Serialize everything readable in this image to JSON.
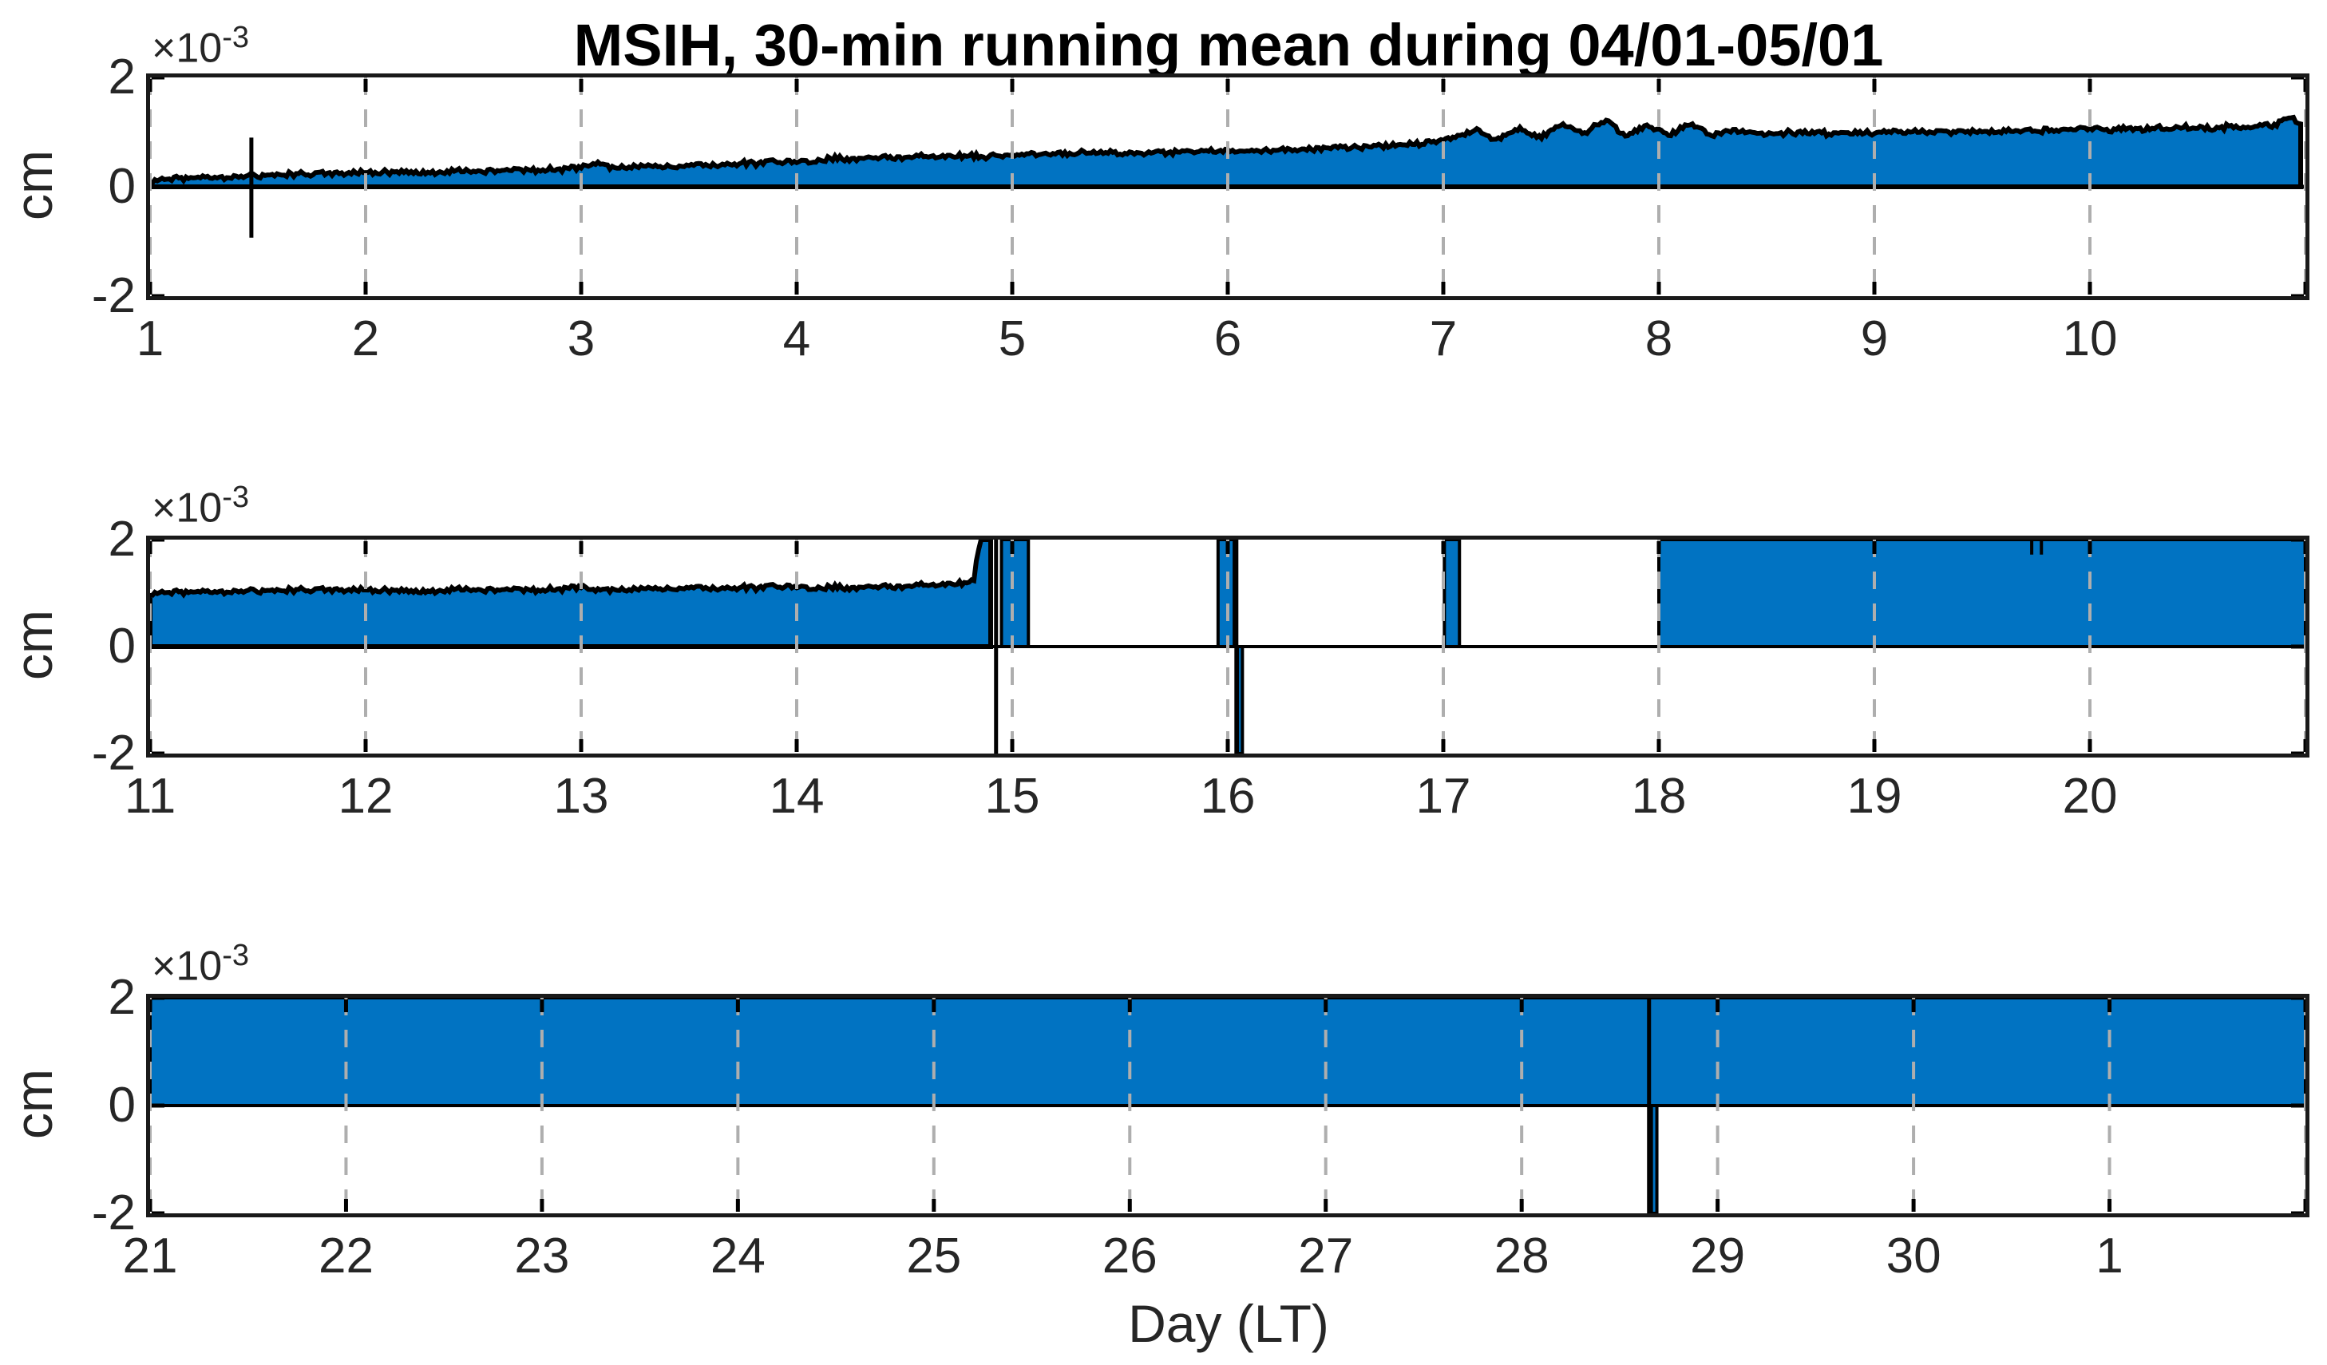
{
  "title": "MSIH, 30-min running mean during 04/01-05/01",
  "xlabel": "Day (LT)",
  "ylabel": "cm",
  "colors": {
    "fill": "#0173c2",
    "line": "#000000",
    "grid": "#aeaeae",
    "spine": "#1a1a1a",
    "text": "#262626"
  },
  "chart_data": [
    {
      "type": "area",
      "name": "subplot-days-1-to-11",
      "y_unit": "1e-3 cm",
      "exponent_base": "×10",
      "exponent_power": "-3",
      "ylabel": "cm",
      "xlim": [
        1,
        11
      ],
      "ylim": [
        -2,
        2
      ],
      "yticks": [
        {
          "v": 2,
          "label": "2"
        },
        {
          "v": 0,
          "label": "0"
        },
        {
          "v": -2,
          "label": "-2"
        }
      ],
      "xticks": [
        {
          "v": 1,
          "label": "1"
        },
        {
          "v": 2,
          "label": "2"
        },
        {
          "v": 3,
          "label": "3"
        },
        {
          "v": 4,
          "label": "4"
        },
        {
          "v": 5,
          "label": "5"
        },
        {
          "v": 6,
          "label": "6"
        },
        {
          "v": 7,
          "label": "7"
        },
        {
          "v": 8,
          "label": "8"
        },
        {
          "v": 9,
          "label": "9"
        },
        {
          "v": 10,
          "label": "10"
        }
      ],
      "grid_days": [
        1,
        2,
        3,
        4,
        5,
        6,
        7,
        8,
        9,
        10,
        11
      ],
      "noise_amp": 0.05,
      "envelope": [
        [
          1,
          0.12
        ],
        [
          1.1,
          0.15
        ],
        [
          1.22,
          0.17
        ],
        [
          1.35,
          0.18
        ],
        [
          1.47,
          0.2
        ],
        [
          1.6,
          0.22
        ],
        [
          1.75,
          0.23
        ],
        [
          1.9,
          0.25
        ],
        [
          2.05,
          0.26
        ],
        [
          2.2,
          0.27
        ],
        [
          2.4,
          0.28
        ],
        [
          2.6,
          0.3
        ],
        [
          2.8,
          0.31
        ],
        [
          3.0,
          0.33
        ],
        [
          3.07,
          0.46
        ],
        [
          3.15,
          0.35
        ],
        [
          3.3,
          0.37
        ],
        [
          3.5,
          0.39
        ],
        [
          3.7,
          0.41
        ],
        [
          3.85,
          0.44
        ],
        [
          4.0,
          0.46
        ],
        [
          4.15,
          0.51
        ],
        [
          4.3,
          0.52
        ],
        [
          4.5,
          0.54
        ],
        [
          4.7,
          0.55
        ],
        [
          4.9,
          0.57
        ],
        [
          5.1,
          0.59
        ],
        [
          5.3,
          0.61
        ],
        [
          5.5,
          0.62
        ],
        [
          5.7,
          0.64
        ],
        [
          5.9,
          0.65
        ],
        [
          6.1,
          0.67
        ],
        [
          6.3,
          0.69
        ],
        [
          6.5,
          0.72
        ],
        [
          6.7,
          0.75
        ],
        [
          6.9,
          0.79
        ],
        [
          7.05,
          0.92
        ],
        [
          7.15,
          1.02
        ],
        [
          7.25,
          0.86
        ],
        [
          7.35,
          1.06
        ],
        [
          7.45,
          0.9
        ],
        [
          7.55,
          1.16
        ],
        [
          7.65,
          0.96
        ],
        [
          7.75,
          1.22
        ],
        [
          7.85,
          0.92
        ],
        [
          7.95,
          1.12
        ],
        [
          8.05,
          0.96
        ],
        [
          8.15,
          1.16
        ],
        [
          8.25,
          0.93
        ],
        [
          8.35,
          1.06
        ],
        [
          8.45,
          0.96
        ],
        [
          8.6,
          0.99
        ],
        [
          8.8,
          0.97
        ],
        [
          9.0,
          0.99
        ],
        [
          9.2,
          1.0
        ],
        [
          9.4,
          1.01
        ],
        [
          9.6,
          1.02
        ],
        [
          9.8,
          1.03
        ],
        [
          10.0,
          1.05
        ],
        [
          10.2,
          1.06
        ],
        [
          10.4,
          1.08
        ],
        [
          10.6,
          1.09
        ],
        [
          10.75,
          1.11
        ],
        [
          10.85,
          1.13
        ],
        [
          10.93,
          1.27
        ],
        [
          10.985,
          1.16
        ]
      ],
      "flat_segments": [],
      "neg_segments": [],
      "spikes": [
        {
          "x": 1.47,
          "y1": -0.93,
          "y2": 0.9
        }
      ],
      "notches": []
    },
    {
      "type": "area",
      "name": "subplot-days-11-to-21",
      "y_unit": "1e-3 cm",
      "exponent_base": "×10",
      "exponent_power": "-3",
      "ylabel": "cm",
      "xlim": [
        11,
        21
      ],
      "ylim": [
        -2,
        2
      ],
      "yticks": [
        {
          "v": 2,
          "label": "2"
        },
        {
          "v": 0,
          "label": "0"
        },
        {
          "v": -2,
          "label": "-2"
        }
      ],
      "xticks": [
        {
          "v": 11,
          "label": "11"
        },
        {
          "v": 12,
          "label": "12"
        },
        {
          "v": 13,
          "label": "13"
        },
        {
          "v": 14,
          "label": "14"
        },
        {
          "v": 15,
          "label": "15"
        },
        {
          "v": 16,
          "label": "16"
        },
        {
          "v": 17,
          "label": "17"
        },
        {
          "v": 18,
          "label": "18"
        },
        {
          "v": 19,
          "label": "19"
        },
        {
          "v": 20,
          "label": "20"
        }
      ],
      "grid_days": [
        11,
        12,
        13,
        14,
        15,
        16,
        17,
        18,
        19,
        20,
        21
      ],
      "noise_amp": 0.05,
      "envelope": [
        [
          11,
          1.01
        ],
        [
          11.3,
          1.03
        ],
        [
          11.6,
          1.05
        ],
        [
          11.9,
          1.06
        ],
        [
          12.2,
          1.04
        ],
        [
          12.5,
          1.07
        ],
        [
          12.8,
          1.06
        ],
        [
          13.0,
          1.09
        ],
        [
          13.2,
          1.06
        ],
        [
          13.45,
          1.1
        ],
        [
          13.7,
          1.09
        ],
        [
          13.95,
          1.12
        ],
        [
          14.2,
          1.1
        ],
        [
          14.45,
          1.12
        ],
        [
          14.6,
          1.14
        ],
        [
          14.75,
          1.17
        ],
        [
          14.82,
          1.21
        ],
        [
          14.85,
          2
        ],
        [
          14.9,
          2
        ]
      ],
      "flat_segments": [
        {
          "x1": 14.95,
          "x2": 15.075,
          "y": 2
        },
        {
          "x1": 15.955,
          "x2": 16.03,
          "y": 2
        },
        {
          "x1": 17.005,
          "x2": 17.075,
          "y": 2
        },
        {
          "x1": 18.0,
          "x2": 21.0,
          "y": 2
        }
      ],
      "neg_segments": [
        {
          "x1": 16.045,
          "x2": 16.068,
          "y": -2
        }
      ],
      "spikes": [
        {
          "x": 14.925,
          "y1": -2,
          "y2": 2
        },
        {
          "x": 16.04,
          "y1": -2,
          "y2": 2
        }
      ],
      "notches": [
        19.73,
        19.775
      ]
    },
    {
      "type": "area",
      "name": "subplot-days-21-to-32",
      "y_unit": "1e-3 cm",
      "exponent_base": "×10",
      "exponent_power": "-3",
      "ylabel": "cm",
      "xlim": [
        21,
        32
      ],
      "ylim": [
        -2,
        2
      ],
      "yticks": [
        {
          "v": 2,
          "label": "2"
        },
        {
          "v": 0,
          "label": "0"
        },
        {
          "v": -2,
          "label": "-2"
        }
      ],
      "xticks": [
        {
          "v": 21,
          "label": "21"
        },
        {
          "v": 22,
          "label": "22"
        },
        {
          "v": 23,
          "label": "23"
        },
        {
          "v": 24,
          "label": "24"
        },
        {
          "v": 25,
          "label": "25"
        },
        {
          "v": 26,
          "label": "26"
        },
        {
          "v": 27,
          "label": "27"
        },
        {
          "v": 28,
          "label": "28"
        },
        {
          "v": 29,
          "label": "29"
        },
        {
          "v": 30,
          "label": "30"
        },
        {
          "v": 31,
          "label": "1"
        }
      ],
      "grid_days": [
        21,
        22,
        23,
        24,
        25,
        26,
        27,
        28,
        29,
        30,
        31,
        32
      ],
      "noise_amp": 0,
      "envelope": [],
      "flat_segments": [
        {
          "x1": 21.0,
          "x2": 32.0,
          "y": 2
        }
      ],
      "neg_segments": [
        {
          "x1": 28.662,
          "x2": 28.69,
          "y": -2
        }
      ],
      "spikes": [
        {
          "x": 28.65,
          "y1": -2,
          "y2": 2
        }
      ],
      "notches": []
    }
  ]
}
